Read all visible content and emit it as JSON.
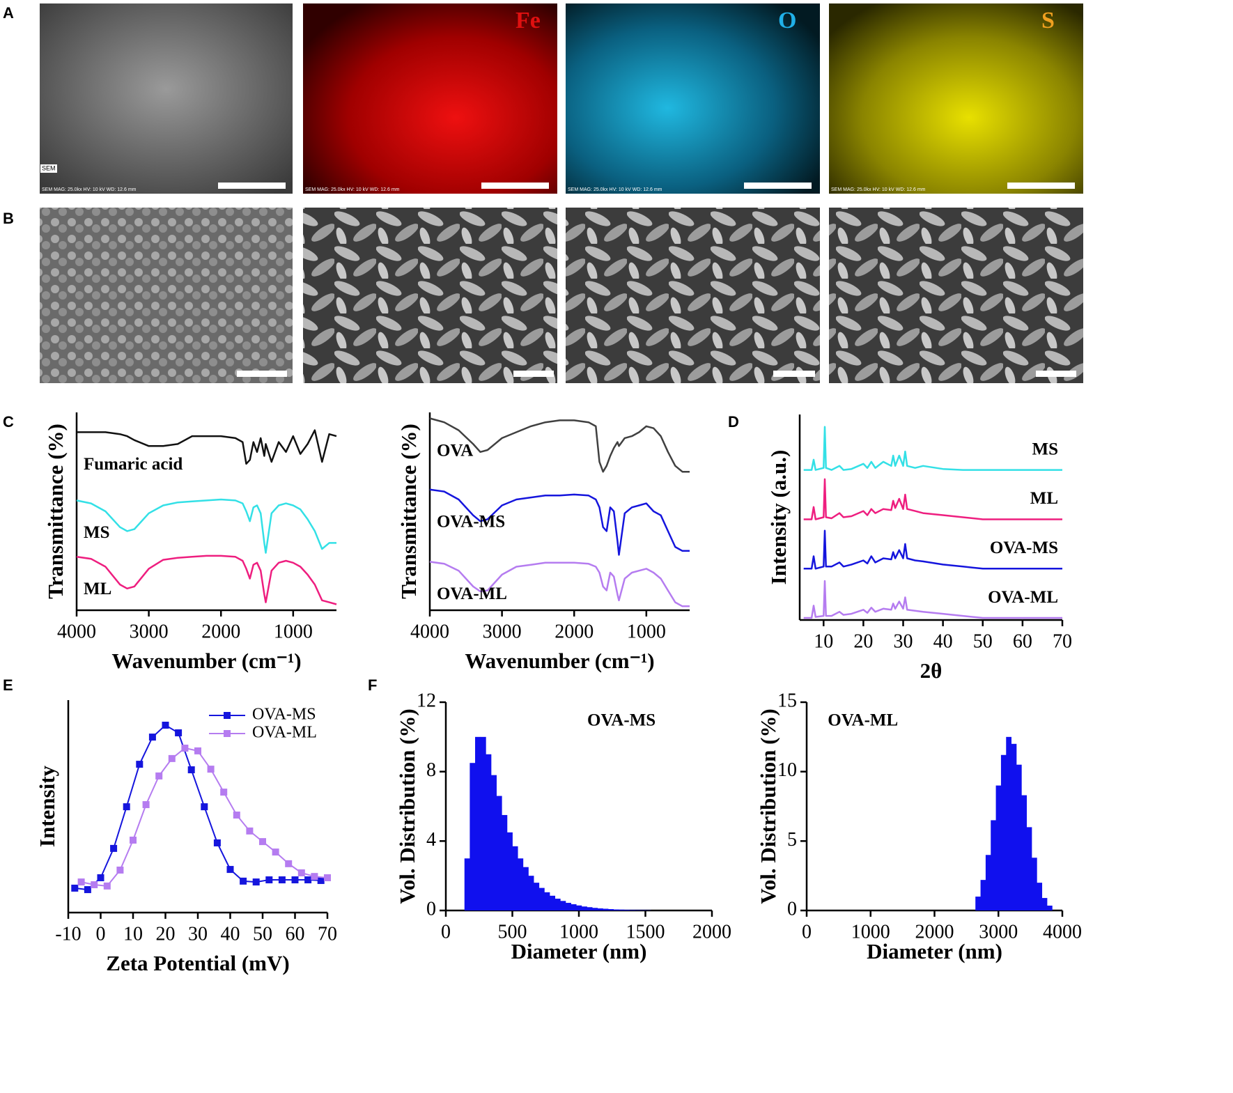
{
  "panels": [
    "A",
    "B",
    "C",
    "D",
    "E",
    "F"
  ],
  "images": {
    "sem_tag": "SEM",
    "element_labels": [
      "Fe",
      "O",
      "S"
    ],
    "info": "SEM   MAG: 25.0kx   HV: 10 kV   WD: 12.6 mm"
  },
  "chart_data": [
    {
      "type": "line",
      "x_label": "Wavenumber (cm⁻¹)",
      "y_label": "Transmittance (%)",
      "legend": "start",
      "xlim": [
        4000,
        400
      ],
      "xticks": [
        4000,
        3000,
        2000,
        1000
      ],
      "ylim": [
        0,
        10
      ],
      "x": [
        4000,
        3800,
        3600,
        3400,
        3300,
        3200,
        3000,
        2800,
        2600,
        2400,
        2200,
        2000,
        1800,
        1700,
        1650,
        1600,
        1550,
        1500,
        1450,
        1400,
        1380,
        1300,
        1200,
        1100,
        1000,
        900,
        800,
        700,
        600,
        500,
        400
      ],
      "series": [
        {
          "name": "Fumaric acid",
          "color": "#111111",
          "values": [
            9.0,
            9.0,
            9.0,
            8.9,
            8.8,
            8.6,
            8.3,
            8.3,
            8.4,
            8.8,
            8.8,
            8.8,
            8.7,
            8.5,
            7.4,
            7.6,
            8.5,
            8.0,
            8.7,
            7.8,
            8.4,
            7.5,
            8.5,
            8.0,
            8.8,
            7.9,
            8.4,
            9.1,
            7.5,
            8.9,
            8.8
          ]
        },
        {
          "name": "MS",
          "color": "#33e0e6",
          "values": [
            5.55,
            5.4,
            5.0,
            4.2,
            4.0,
            4.1,
            4.9,
            5.3,
            5.45,
            5.5,
            5.55,
            5.6,
            5.55,
            5.4,
            5.0,
            4.5,
            5.2,
            5.3,
            4.9,
            3.4,
            2.9,
            4.9,
            5.3,
            5.4,
            5.3,
            5.1,
            4.6,
            4.0,
            3.1,
            3.4,
            3.4
          ]
        },
        {
          "name": "ML",
          "color": "#ee1e7f",
          "values": [
            2.7,
            2.6,
            2.2,
            1.3,
            1.1,
            1.2,
            2.1,
            2.55,
            2.65,
            2.7,
            2.75,
            2.75,
            2.7,
            2.5,
            2.1,
            1.6,
            2.3,
            2.4,
            2.0,
            0.8,
            0.4,
            2.0,
            2.4,
            2.5,
            2.4,
            2.2,
            1.8,
            1.3,
            0.5,
            0.4,
            0.3
          ]
        }
      ]
    },
    {
      "type": "line",
      "x_label": "Wavenumber (cm⁻¹)",
      "y_label": "Transmittance (%)",
      "legend": "start",
      "xlim": [
        4000,
        400
      ],
      "xticks": [
        4000,
        3000,
        2000,
        1000
      ],
      "ylim": [
        0,
        10
      ],
      "x": [
        4000,
        3800,
        3600,
        3400,
        3300,
        3200,
        3000,
        2800,
        2600,
        2400,
        2200,
        2000,
        1800,
        1700,
        1650,
        1600,
        1550,
        1500,
        1450,
        1400,
        1380,
        1300,
        1200,
        1100,
        1000,
        900,
        800,
        700,
        600,
        500,
        400
      ],
      "series": [
        {
          "name": "OVA",
          "color": "#404040",
          "values": [
            9.7,
            9.5,
            9.1,
            8.4,
            8.0,
            8.1,
            8.7,
            9.0,
            9.3,
            9.5,
            9.6,
            9.6,
            9.5,
            9.3,
            7.5,
            7.0,
            7.3,
            7.8,
            8.2,
            8.5,
            8.3,
            8.7,
            8.8,
            9.0,
            9.3,
            9.2,
            8.8,
            8.0,
            7.3,
            7.0,
            7.0
          ]
        },
        {
          "name": "OVA-MS",
          "color": "#1515dd",
          "values": [
            6.1,
            6.0,
            5.6,
            4.8,
            4.5,
            4.6,
            5.3,
            5.6,
            5.7,
            5.8,
            5.8,
            5.85,
            5.8,
            5.6,
            5.2,
            4.2,
            4.0,
            5.2,
            5.0,
            3.5,
            2.8,
            4.9,
            5.2,
            5.3,
            5.4,
            5.0,
            4.8,
            4.0,
            3.2,
            3.0,
            3.0
          ]
        },
        {
          "name": "OVA-ML",
          "color": "#b57cf0",
          "values": [
            2.45,
            2.35,
            2.0,
            1.2,
            0.95,
            1.0,
            1.8,
            2.2,
            2.3,
            2.4,
            2.4,
            2.4,
            2.35,
            2.2,
            1.9,
            1.2,
            1.0,
            1.9,
            1.7,
            0.8,
            0.5,
            1.6,
            1.9,
            2.0,
            2.1,
            1.9,
            1.6,
            1.0,
            0.4,
            0.2,
            0.2
          ]
        }
      ]
    },
    {
      "type": "line",
      "x_label": "2θ",
      "y_label": "Intensity (a.u.)",
      "legend": "end",
      "xlim": [
        4,
        70
      ],
      "xticks": [
        10,
        20,
        30,
        40,
        50,
        60,
        70
      ],
      "ylim": [
        0,
        10
      ],
      "x": [
        5,
        7,
        7.5,
        8,
        10,
        10.3,
        10.6,
        12,
        14,
        15,
        17,
        20,
        21,
        22,
        23,
        25,
        27,
        27.5,
        28,
        29,
        30,
        30.5,
        31,
        33,
        35,
        40,
        45,
        50,
        60,
        70
      ],
      "series": [
        {
          "name": "MS",
          "color": "#33e0e6",
          "values": [
            7.3,
            7.3,
            7.8,
            7.3,
            7.4,
            9.4,
            7.4,
            7.3,
            7.5,
            7.3,
            7.35,
            7.6,
            7.4,
            7.7,
            7.4,
            7.7,
            7.5,
            8.0,
            7.5,
            8.0,
            7.5,
            8.2,
            7.5,
            7.4,
            7.5,
            7.35,
            7.3,
            7.3,
            7.3,
            7.3
          ]
        },
        {
          "name": "ML",
          "color": "#ee1e7f",
          "values": [
            4.9,
            4.9,
            5.5,
            4.9,
            5.0,
            6.85,
            5.0,
            4.95,
            5.2,
            5.0,
            5.05,
            5.3,
            5.1,
            5.4,
            5.2,
            5.4,
            5.35,
            5.8,
            5.45,
            5.9,
            5.4,
            6.1,
            5.4,
            5.3,
            5.2,
            5.1,
            5.0,
            4.9,
            4.9,
            4.9
          ]
        },
        {
          "name": "OVA-MS",
          "color": "#1515dd",
          "values": [
            2.5,
            2.5,
            3.1,
            2.5,
            2.6,
            4.35,
            2.6,
            2.6,
            2.8,
            2.6,
            2.7,
            2.9,
            2.75,
            3.1,
            2.8,
            3.0,
            2.95,
            3.3,
            3.0,
            3.4,
            3.0,
            3.7,
            3.0,
            2.9,
            2.85,
            2.7,
            2.6,
            2.5,
            2.5,
            2.5
          ]
        },
        {
          "name": "OVA-ML",
          "color": "#b57cf0",
          "values": [
            0.1,
            0.1,
            0.7,
            0.15,
            0.2,
            1.9,
            0.2,
            0.2,
            0.4,
            0.25,
            0.3,
            0.5,
            0.35,
            0.6,
            0.4,
            0.55,
            0.5,
            0.8,
            0.55,
            0.9,
            0.55,
            1.1,
            0.5,
            0.45,
            0.4,
            0.3,
            0.2,
            0.1,
            0.1,
            0.1
          ]
        }
      ]
    },
    {
      "type": "line",
      "markers": "square",
      "x_label": "Zeta Potential (mV)",
      "y_label": "Intensity",
      "legend": "upper right",
      "xlim": [
        -10,
        70
      ],
      "xticks": [
        -10,
        0,
        10,
        20,
        30,
        40,
        50,
        60,
        70
      ],
      "ylim": [
        0,
        10
      ],
      "series": [
        {
          "name": "OVA-MS",
          "color": "#1515dd",
          "x": [
            -8,
            -4,
            0,
            4,
            8,
            12,
            16,
            20,
            24,
            28,
            32,
            36,
            40,
            44,
            48,
            52,
            56,
            60,
            64,
            68
          ],
          "values": [
            1.15,
            1.08,
            1.64,
            3.02,
            4.98,
            6.98,
            8.26,
            8.82,
            8.46,
            6.72,
            4.98,
            3.28,
            2.03,
            1.48,
            1.44,
            1.54,
            1.54,
            1.54,
            1.54,
            1.51
          ]
        },
        {
          "name": "OVA-ML",
          "color": "#b57cf0",
          "x": [
            -6,
            -2,
            2,
            6,
            10,
            14,
            18,
            22,
            26,
            30,
            34,
            38,
            42,
            46,
            50,
            54,
            58,
            62,
            66,
            70
          ],
          "values": [
            1.44,
            1.31,
            1.25,
            2.0,
            3.41,
            5.08,
            6.43,
            7.25,
            7.74,
            7.61,
            6.75,
            5.67,
            4.59,
            3.84,
            3.34,
            2.85,
            2.3,
            1.87,
            1.7,
            1.64
          ]
        }
      ]
    },
    {
      "type": "histogram",
      "annotation": "OVA-MS",
      "x_label": "Diameter (nm)",
      "y_label": "Vol. Distribution (%)",
      "color": "#1010ee",
      "xlim": [
        0,
        2000
      ],
      "xticks": [
        0,
        500,
        1000,
        1500,
        2000
      ],
      "ylim": [
        0,
        12
      ],
      "yticks": [
        0,
        4,
        8,
        12
      ],
      "bins": [
        140,
        180,
        220,
        260,
        300,
        340,
        380,
        420,
        460,
        500,
        540,
        580,
        620,
        660,
        700,
        740,
        780,
        820,
        860,
        900,
        940,
        980,
        1020,
        1060,
        1100,
        1140,
        1180,
        1220,
        1260,
        1300,
        1340,
        1380,
        1420,
        1460,
        1500,
        1540
      ],
      "values": [
        3.0,
        8.5,
        10.0,
        10.0,
        9.0,
        7.8,
        6.6,
        5.5,
        4.5,
        3.7,
        3.0,
        2.5,
        2.0,
        1.6,
        1.3,
        1.05,
        0.85,
        0.68,
        0.55,
        0.44,
        0.36,
        0.29,
        0.23,
        0.19,
        0.15,
        0.12,
        0.1,
        0.08,
        0.06,
        0.05,
        0.04,
        0.03,
        0.025,
        0.02,
        0.015
      ]
    },
    {
      "type": "histogram",
      "annotation": "OVA-ML",
      "x_label": "Diameter (nm)",
      "y_label": "Vol. Distribution (%)",
      "color": "#1010ee",
      "xlim": [
        0,
        4000
      ],
      "xticks": [
        0,
        1000,
        2000,
        3000,
        4000
      ],
      "ylim": [
        0,
        15
      ],
      "yticks": [
        0,
        5,
        10,
        15
      ],
      "bins": [
        2640,
        2720,
        2800,
        2880,
        2960,
        3040,
        3120,
        3200,
        3280,
        3360,
        3440,
        3520,
        3600,
        3680,
        3760,
        3840
      ],
      "values": [
        1.0,
        2.2,
        4.0,
        6.5,
        9.0,
        11.2,
        12.5,
        12.0,
        10.5,
        8.3,
        6.0,
        3.8,
        2.0,
        0.9,
        0.35
      ]
    }
  ]
}
